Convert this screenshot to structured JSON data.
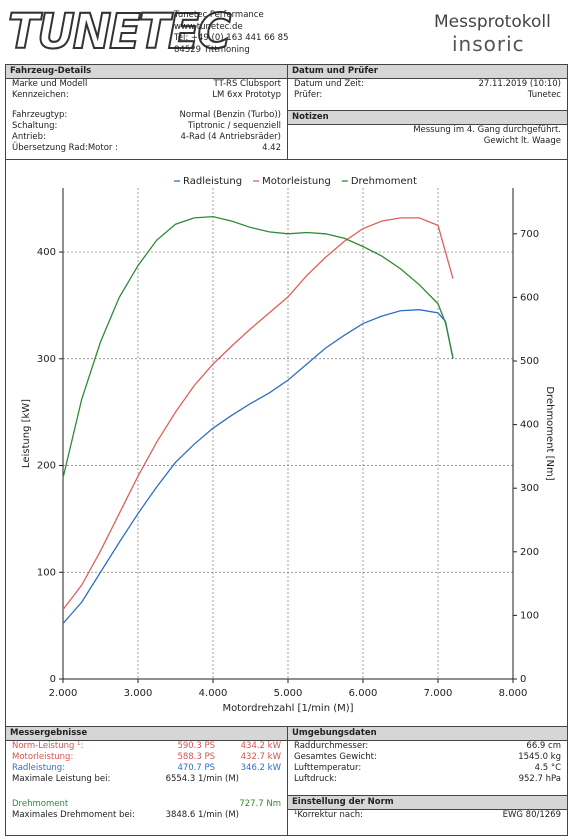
{
  "header": {
    "logo": "TUNETEC",
    "company": [
      "Tunetec Performance",
      "www.tunetec.de",
      "Tel: +49 (0) 163 441 66 85",
      "84529 Tittmoning"
    ],
    "protocol_title": "Messprotokoll",
    "brand": "insoric"
  },
  "vehicle": {
    "title": "Fahrzeug-Details",
    "groups": [
      [
        [
          "Marke und Modell",
          "TT-RS Clubsport"
        ],
        [
          "Kennzeichen:",
          "LM 6xx Prototyp"
        ]
      ],
      [
        [
          "Fahrzeugtyp:",
          "Normal (Benzin (Turbo))"
        ],
        [
          "Schaltung:",
          "Tiptronic / sequenziell"
        ],
        [
          "Antrieb:",
          "4-Rad (4 Antriebsräder)"
        ],
        [
          "Übersetzung Rad:Motor :",
          "4.42"
        ]
      ]
    ]
  },
  "date": {
    "title": "Datum und Prüfer",
    "rows": [
      [
        "Datum und Zeit:",
        "27.11.2019 (10:10)"
      ],
      [
        "Prüfer:",
        "Tunetec"
      ]
    ]
  },
  "notes": {
    "title": "Notizen",
    "lines": [
      "Messung im 4. Gang durchgeführt.",
      "Gewicht lt. Waage"
    ]
  },
  "chart_data": {
    "type": "line",
    "x_label": "Motordrehzahl [1/min (M)]",
    "y_label": "Leistung [kW]",
    "y2_label": "Drehmoment [Nm]",
    "x": [
      2000,
      2250,
      2500,
      2750,
      3000,
      3250,
      3500,
      3750,
      4000,
      4250,
      4500,
      4750,
      5000,
      5250,
      5500,
      5750,
      6000,
      6250,
      6500,
      6750,
      7000,
      7100,
      7200
    ],
    "series": [
      {
        "name": "Radleistung",
        "color": "#2e6fc4",
        "values": [
          52,
          72,
          100,
          128,
          155,
          180,
          203,
          220,
          235,
          247,
          258,
          268,
          280,
          295,
          310,
          322,
          333,
          340,
          345,
          346,
          343,
          335,
          300
        ]
      },
      {
        "name": "Motorleistung",
        "color": "#e0605a",
        "values": [
          65,
          88,
          120,
          155,
          190,
          222,
          250,
          275,
          295,
          312,
          328,
          343,
          358,
          378,
          395,
          410,
          422,
          429,
          432,
          432,
          425,
          400,
          375
        ]
      },
      {
        "name": "Drehmoment",
        "color": "#2e8b34",
        "axis": "y2",
        "values": [
          316,
          440,
          530,
          600,
          650,
          690,
          715,
          725,
          727,
          720,
          710,
          703,
          700,
          702,
          700,
          693,
          680,
          665,
          645,
          620,
          590,
          560,
          505
        ]
      }
    ],
    "xlim": [
      2000,
      8000
    ],
    "xticks": [
      {
        "value": 2000,
        "label": "2.000"
      },
      {
        "value": 3000,
        "label": "3.000"
      },
      {
        "value": 4000,
        "label": "4.000"
      },
      {
        "value": 5000,
        "label": "5.000"
      },
      {
        "value": 6000,
        "label": "6.000"
      },
      {
        "value": 7000,
        "label": "7.000"
      },
      {
        "value": 8000,
        "label": "8.000"
      }
    ],
    "ylim": [
      0,
      460
    ],
    "yticks": [
      0,
      100,
      200,
      300,
      400
    ],
    "y2lim": [
      0,
      772
    ],
    "y2ticks": [
      0,
      100,
      200,
      300,
      400,
      500,
      600,
      700
    ],
    "grid": true
  },
  "results": {
    "title": "Messergebnisse",
    "rows": [
      [
        "Norm-Leistung ¹:",
        "590.3 PS",
        "434.2 kW"
      ],
      [
        "Motorleistung:",
        "588.3 PS",
        "432.7 kW"
      ],
      [
        "Radleistung:",
        "470.7 PS",
        "346.2 kW"
      ],
      [
        "Maximale Leistung bei:",
        "6554.3 1/min (M)"
      ],
      [
        "Drehmoment",
        "727.7 Nm"
      ],
      [
        "Maximales Drehmoment bei:",
        "3848.6 1/min (M)"
      ]
    ]
  },
  "ambient": {
    "title": "Umgebungsdaten",
    "rows": [
      [
        "Raddurchmesser:",
        "66.9 cm"
      ],
      [
        "Gesamtes Gewicht:",
        "1545.0 kg"
      ],
      [
        "Lufttemperatur:",
        "4.5 °C"
      ],
      [
        "Luftdruck:",
        "952.7 hPa"
      ]
    ]
  },
  "norm": {
    "title": "Einstellung der Norm",
    "rows": [
      [
        "¹Korrektur nach:",
        "EWG 80/1269"
      ]
    ]
  }
}
